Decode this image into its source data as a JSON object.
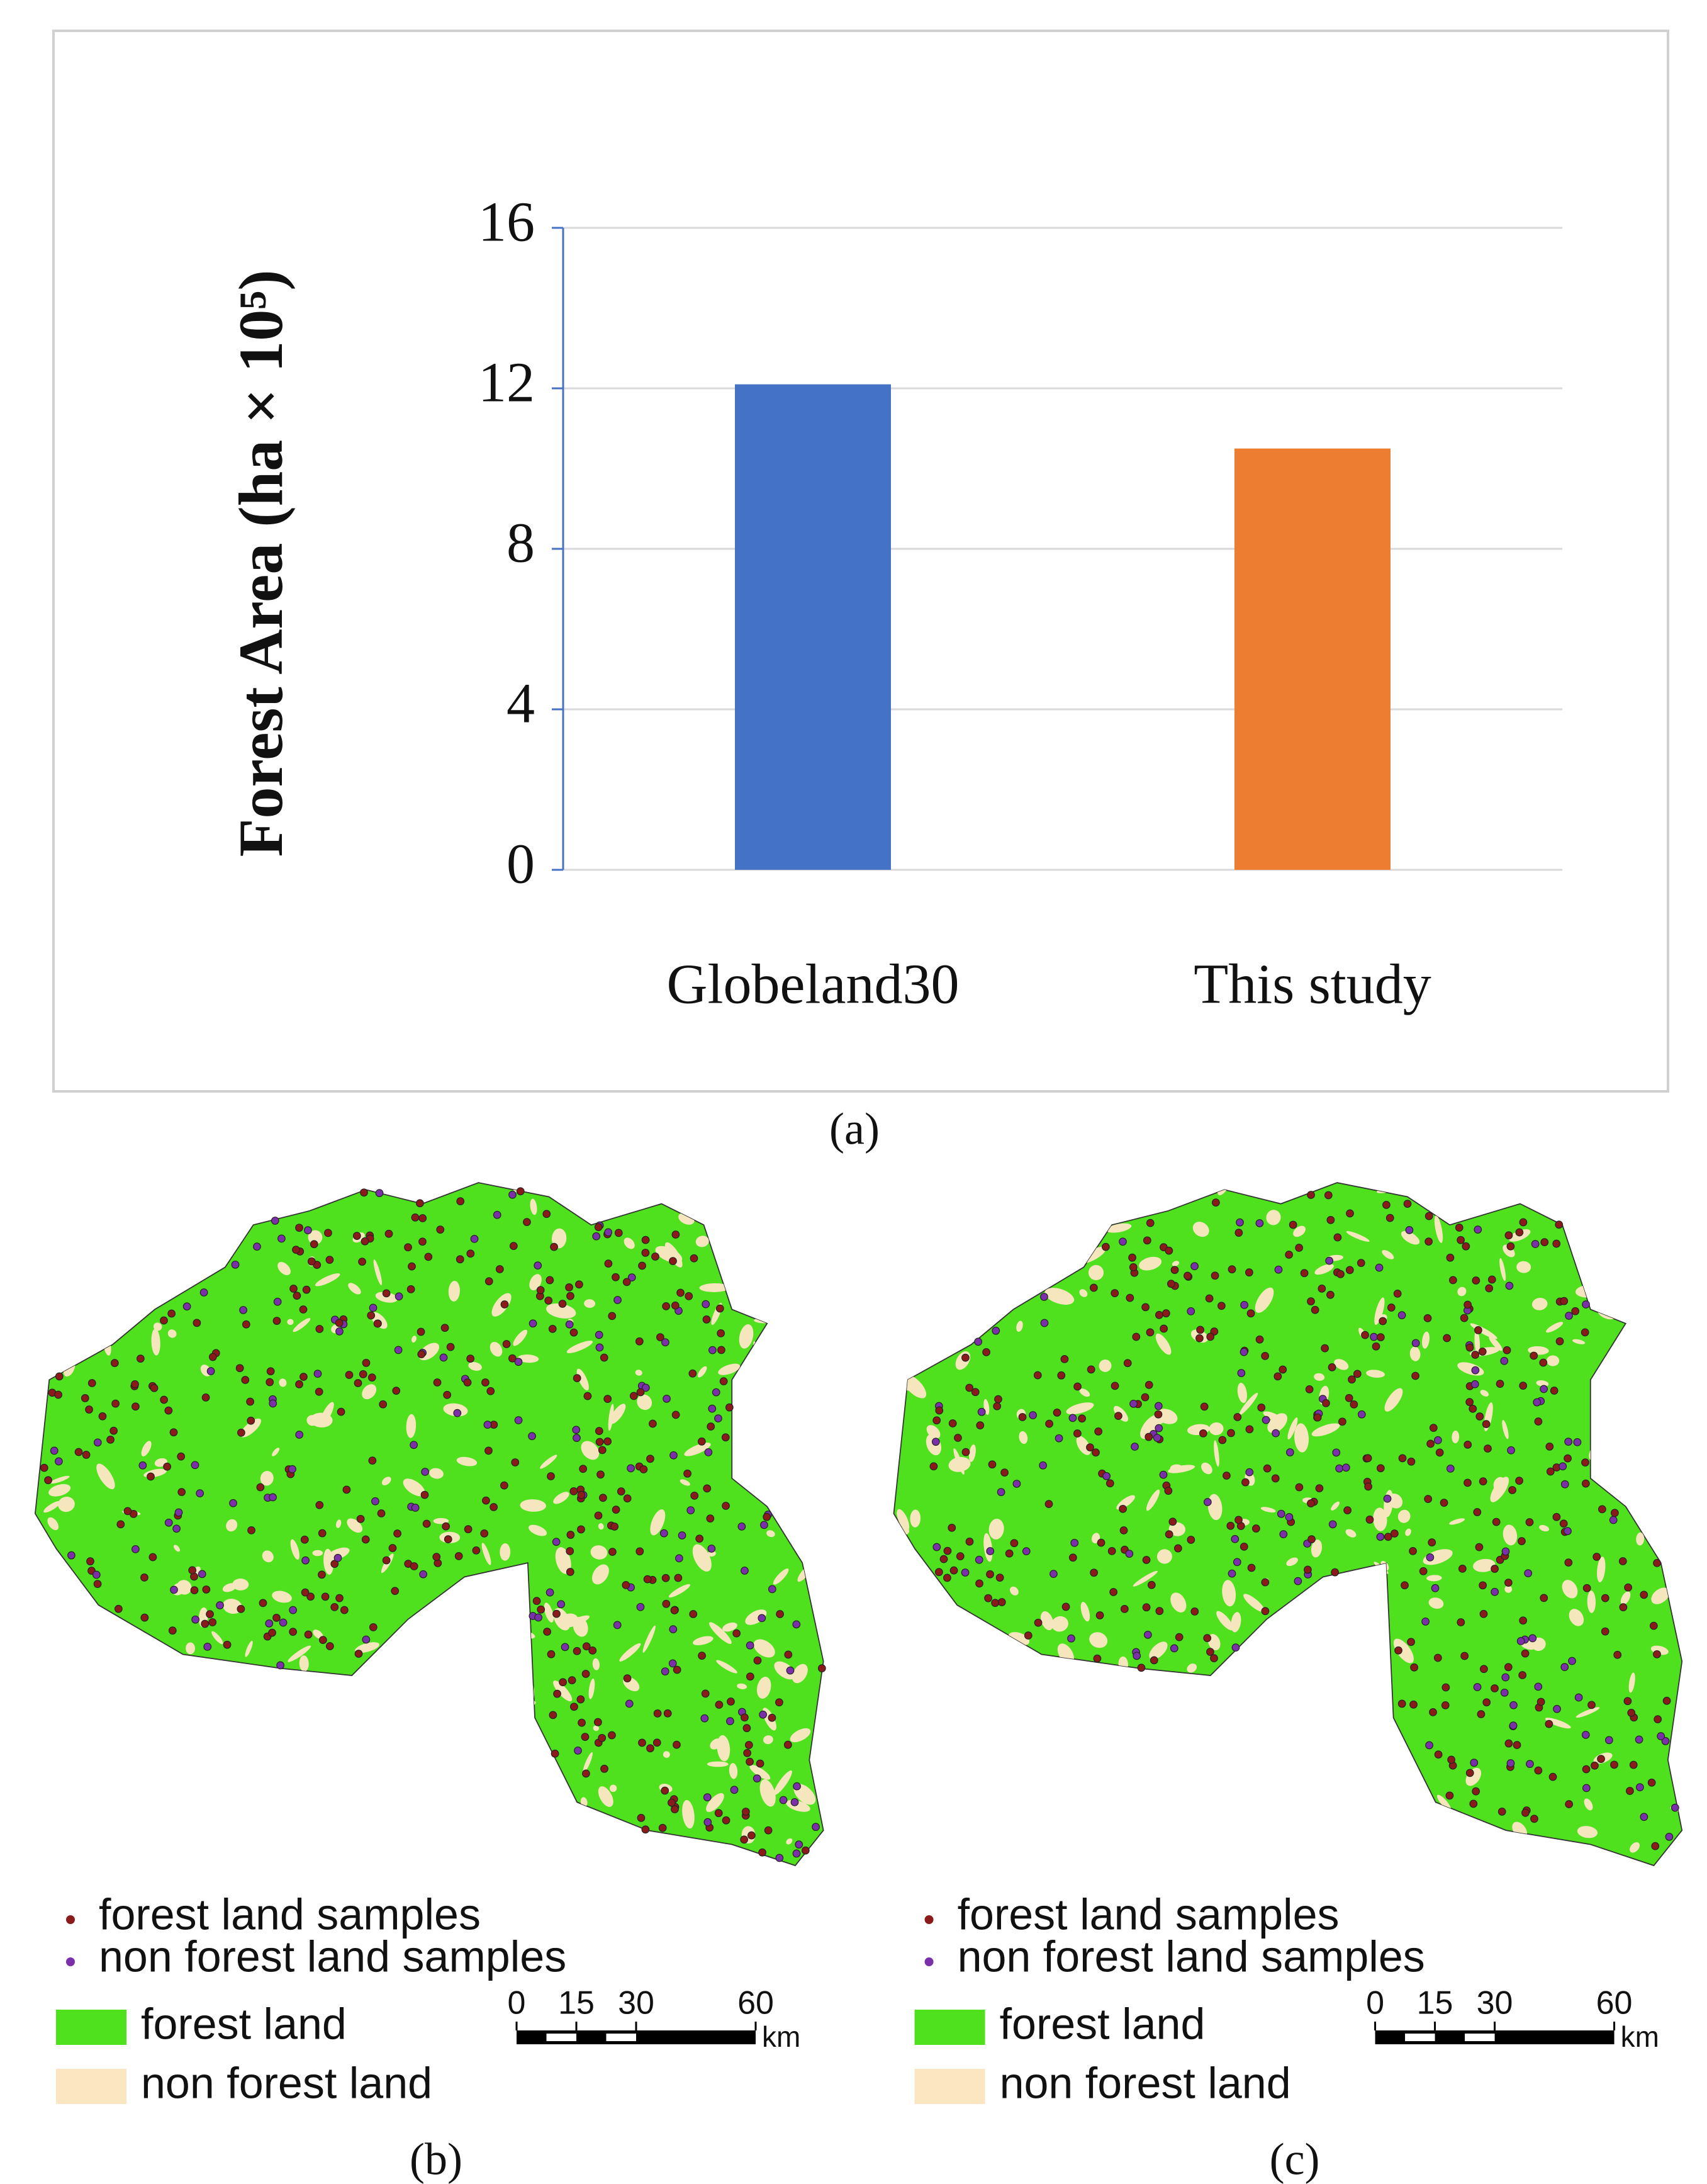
{
  "chart_data": {
    "type": "bar",
    "ylabel": "Forest Area (ha × 10⁵)",
    "categories": [
      "Globeland30",
      "This study"
    ],
    "values": [
      12.1,
      10.5
    ],
    "colors": [
      "#4472c4",
      "#ed7d31"
    ],
    "ylim": [
      0,
      16
    ],
    "yticks": [
      0,
      4,
      8,
      12,
      16
    ],
    "grid": true
  },
  "caption": "(a)",
  "maps": [
    {
      "caption": "(b)",
      "legend": [
        "forest land samples",
        "non forest land samples",
        "forest land",
        "non forest land"
      ],
      "scale_ticks": [
        0,
        15,
        30,
        60
      ],
      "scale_unit": "km"
    },
    {
      "caption": "(c)",
      "legend": [
        "forest land samples",
        "non forest land samples",
        "forest land",
        "non forest land"
      ],
      "scale_ticks": [
        0,
        15,
        30,
        60
      ],
      "scale_unit": "km"
    }
  ]
}
